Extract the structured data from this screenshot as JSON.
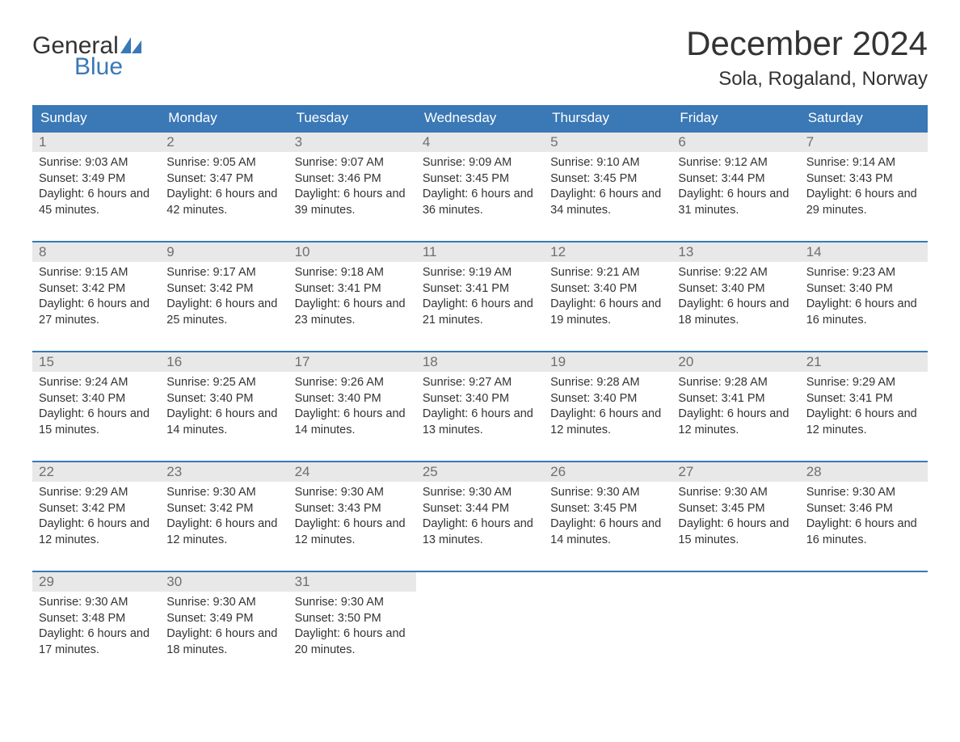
{
  "brand": {
    "name_part1": "General",
    "name_part2": "Blue",
    "text_color": "#333333",
    "accent_color": "#3a78b6"
  },
  "title": "December 2024",
  "location": "Sola, Rogaland, Norway",
  "colors": {
    "header_bg": "#3a78b6",
    "header_text": "#ffffff",
    "day_num_bg": "#e8e8e8",
    "day_num_text": "#6f6f6f",
    "body_text": "#333333",
    "week_border": "#3a78b6",
    "page_bg": "#ffffff"
  },
  "typography": {
    "title_fontsize": 42,
    "location_fontsize": 24,
    "dow_fontsize": 17,
    "daynum_fontsize": 17,
    "body_fontsize": 14.5,
    "font_family": "Arial"
  },
  "days_of_week": [
    "Sunday",
    "Monday",
    "Tuesday",
    "Wednesday",
    "Thursday",
    "Friday",
    "Saturday"
  ],
  "weeks": [
    [
      {
        "num": "1",
        "sunrise": "9:03 AM",
        "sunset": "3:49 PM",
        "daylight": "6 hours and 45 minutes."
      },
      {
        "num": "2",
        "sunrise": "9:05 AM",
        "sunset": "3:47 PM",
        "daylight": "6 hours and 42 minutes."
      },
      {
        "num": "3",
        "sunrise": "9:07 AM",
        "sunset": "3:46 PM",
        "daylight": "6 hours and 39 minutes."
      },
      {
        "num": "4",
        "sunrise": "9:09 AM",
        "sunset": "3:45 PM",
        "daylight": "6 hours and 36 minutes."
      },
      {
        "num": "5",
        "sunrise": "9:10 AM",
        "sunset": "3:45 PM",
        "daylight": "6 hours and 34 minutes."
      },
      {
        "num": "6",
        "sunrise": "9:12 AM",
        "sunset": "3:44 PM",
        "daylight": "6 hours and 31 minutes."
      },
      {
        "num": "7",
        "sunrise": "9:14 AM",
        "sunset": "3:43 PM",
        "daylight": "6 hours and 29 minutes."
      }
    ],
    [
      {
        "num": "8",
        "sunrise": "9:15 AM",
        "sunset": "3:42 PM",
        "daylight": "6 hours and 27 minutes."
      },
      {
        "num": "9",
        "sunrise": "9:17 AM",
        "sunset": "3:42 PM",
        "daylight": "6 hours and 25 minutes."
      },
      {
        "num": "10",
        "sunrise": "9:18 AM",
        "sunset": "3:41 PM",
        "daylight": "6 hours and 23 minutes."
      },
      {
        "num": "11",
        "sunrise": "9:19 AM",
        "sunset": "3:41 PM",
        "daylight": "6 hours and 21 minutes."
      },
      {
        "num": "12",
        "sunrise": "9:21 AM",
        "sunset": "3:40 PM",
        "daylight": "6 hours and 19 minutes."
      },
      {
        "num": "13",
        "sunrise": "9:22 AM",
        "sunset": "3:40 PM",
        "daylight": "6 hours and 18 minutes."
      },
      {
        "num": "14",
        "sunrise": "9:23 AM",
        "sunset": "3:40 PM",
        "daylight": "6 hours and 16 minutes."
      }
    ],
    [
      {
        "num": "15",
        "sunrise": "9:24 AM",
        "sunset": "3:40 PM",
        "daylight": "6 hours and 15 minutes."
      },
      {
        "num": "16",
        "sunrise": "9:25 AM",
        "sunset": "3:40 PM",
        "daylight": "6 hours and 14 minutes."
      },
      {
        "num": "17",
        "sunrise": "9:26 AM",
        "sunset": "3:40 PM",
        "daylight": "6 hours and 14 minutes."
      },
      {
        "num": "18",
        "sunrise": "9:27 AM",
        "sunset": "3:40 PM",
        "daylight": "6 hours and 13 minutes."
      },
      {
        "num": "19",
        "sunrise": "9:28 AM",
        "sunset": "3:40 PM",
        "daylight": "6 hours and 12 minutes."
      },
      {
        "num": "20",
        "sunrise": "9:28 AM",
        "sunset": "3:41 PM",
        "daylight": "6 hours and 12 minutes."
      },
      {
        "num": "21",
        "sunrise": "9:29 AM",
        "sunset": "3:41 PM",
        "daylight": "6 hours and 12 minutes."
      }
    ],
    [
      {
        "num": "22",
        "sunrise": "9:29 AM",
        "sunset": "3:42 PM",
        "daylight": "6 hours and 12 minutes."
      },
      {
        "num": "23",
        "sunrise": "9:30 AM",
        "sunset": "3:42 PM",
        "daylight": "6 hours and 12 minutes."
      },
      {
        "num": "24",
        "sunrise": "9:30 AM",
        "sunset": "3:43 PM",
        "daylight": "6 hours and 12 minutes."
      },
      {
        "num": "25",
        "sunrise": "9:30 AM",
        "sunset": "3:44 PM",
        "daylight": "6 hours and 13 minutes."
      },
      {
        "num": "26",
        "sunrise": "9:30 AM",
        "sunset": "3:45 PM",
        "daylight": "6 hours and 14 minutes."
      },
      {
        "num": "27",
        "sunrise": "9:30 AM",
        "sunset": "3:45 PM",
        "daylight": "6 hours and 15 minutes."
      },
      {
        "num": "28",
        "sunrise": "9:30 AM",
        "sunset": "3:46 PM",
        "daylight": "6 hours and 16 minutes."
      }
    ],
    [
      {
        "num": "29",
        "sunrise": "9:30 AM",
        "sunset": "3:48 PM",
        "daylight": "6 hours and 17 minutes."
      },
      {
        "num": "30",
        "sunrise": "9:30 AM",
        "sunset": "3:49 PM",
        "daylight": "6 hours and 18 minutes."
      },
      {
        "num": "31",
        "sunrise": "9:30 AM",
        "sunset": "3:50 PM",
        "daylight": "6 hours and 20 minutes."
      },
      {
        "empty": true
      },
      {
        "empty": true
      },
      {
        "empty": true
      },
      {
        "empty": true
      }
    ]
  ],
  "labels": {
    "sunrise_prefix": "Sunrise: ",
    "sunset_prefix": "Sunset: ",
    "daylight_prefix": "Daylight: "
  }
}
